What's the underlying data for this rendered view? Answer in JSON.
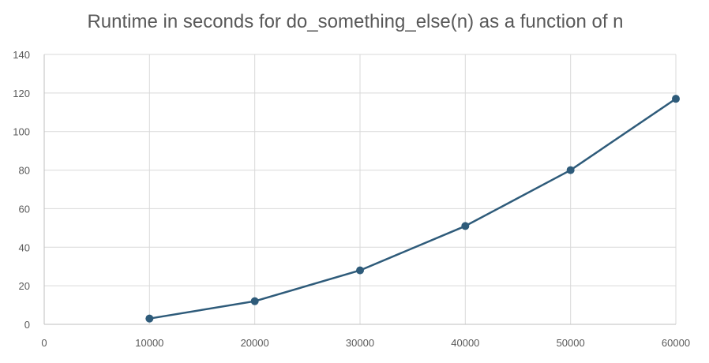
{
  "chart_data": {
    "type": "scatter",
    "title": "Runtime in seconds for do_something_else(n) as a function of n",
    "xlabel": "",
    "ylabel": "",
    "xlim": [
      0,
      60000
    ],
    "ylim": [
      0,
      140
    ],
    "x_ticks": [
      0,
      10000,
      20000,
      30000,
      40000,
      50000,
      60000
    ],
    "y_ticks": [
      0,
      20,
      40,
      60,
      80,
      100,
      120,
      140
    ],
    "grid": "both",
    "legend": "none",
    "line_color": "#2e5b7a",
    "series": [
      {
        "x": [
          10000,
          20000,
          30000,
          40000,
          50000,
          60000
        ],
        "y": [
          3,
          12,
          28,
          51,
          80,
          117
        ]
      }
    ]
  }
}
